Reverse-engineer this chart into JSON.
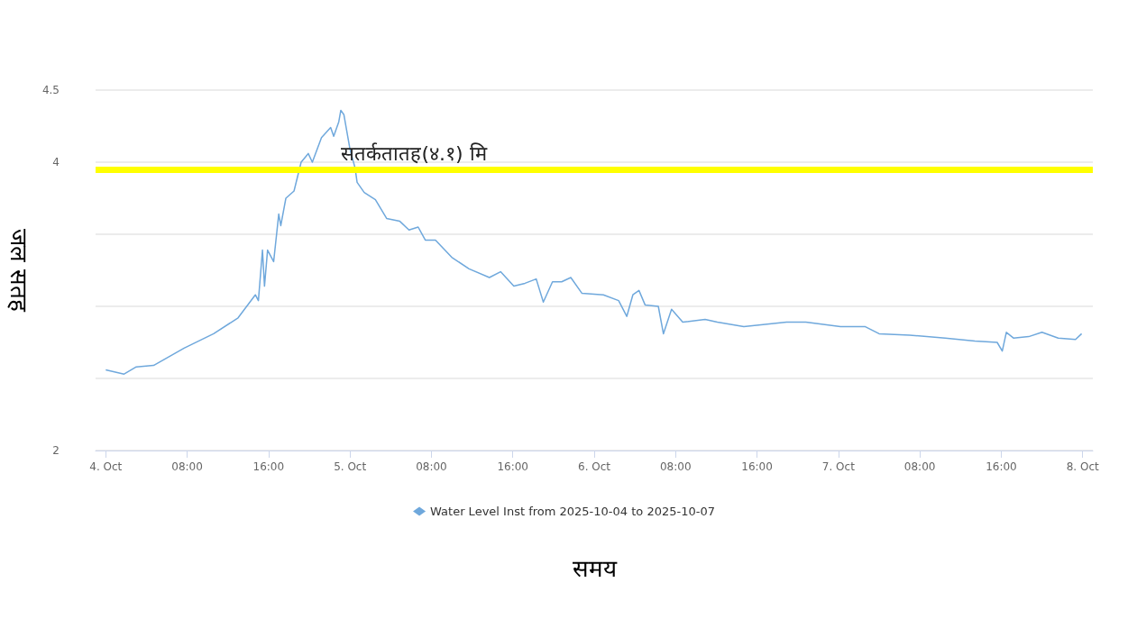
{
  "chart_data": {
    "type": "line",
    "xlabel": "समय",
    "ylabel": "जल सतह",
    "x": [
      "2025-10-04T00:00",
      "2025-10-04T01:48",
      "2025-10-04T03:00",
      "2025-10-04T04:42",
      "2025-10-04T07:42",
      "2025-10-04T10:36",
      "2025-10-04T13:00",
      "2025-10-04T14:42",
      "2025-10-04T15:00",
      "2025-10-04T15:24",
      "2025-10-04T15:36",
      "2025-10-04T15:54",
      "2025-10-04T16:30",
      "2025-10-04T17:00",
      "2025-10-04T17:12",
      "2025-10-04T17:42",
      "2025-10-04T18:30",
      "2025-10-04T19:12",
      "2025-10-04T19:54",
      "2025-10-04T20:18",
      "2025-10-04T21:12",
      "2025-10-04T22:06",
      "2025-10-04T22:24",
      "2025-10-04T22:54",
      "2025-10-04T23:06",
      "2025-10-04T23:24",
      "2025-10-05T00:00",
      "2025-10-05T00:30",
      "2025-10-05T00:42",
      "2025-10-05T01:24",
      "2025-10-05T02:30",
      "2025-10-05T03:36",
      "2025-10-05T04:54",
      "2025-10-05T05:48",
      "2025-10-05T06:42",
      "2025-10-05T07:24",
      "2025-10-05T08:24",
      "2025-10-05T10:00",
      "2025-10-05T11:42",
      "2025-10-05T13:42",
      "2025-10-05T14:48",
      "2025-10-05T16:06",
      "2025-10-05T17:12",
      "2025-10-05T18:18",
      "2025-10-05T19:00",
      "2025-10-05T19:54",
      "2025-10-05T20:48",
      "2025-10-05T21:42",
      "2025-10-05T22:48",
      "2025-10-06T00:54",
      "2025-10-06T02:24",
      "2025-10-06T03:12",
      "2025-10-06T03:48",
      "2025-10-06T04:24",
      "2025-10-06T05:00",
      "2025-10-06T06:18",
      "2025-10-06T06:48",
      "2025-10-06T07:36",
      "2025-10-06T08:42",
      "2025-10-06T10:54",
      "2025-10-06T12:06",
      "2025-10-06T14:42",
      "2025-10-06T18:54",
      "2025-10-06T20:48",
      "2025-10-07T00:12",
      "2025-10-07T02:36",
      "2025-10-07T04:00",
      "2025-10-07T07:00",
      "2025-10-07T10:30",
      "2025-10-07T13:24",
      "2025-10-07T15:36",
      "2025-10-07T16:06",
      "2025-10-07T16:30",
      "2025-10-07T17:12",
      "2025-10-07T18:42",
      "2025-10-07T20:00",
      "2025-10-07T21:36",
      "2025-10-07T23:18",
      "2025-10-07T23:54"
    ],
    "series": [
      {
        "name": "Water Level Inst from 2025-10-04 to 2025-10-07",
        "color": "#6fa8dc",
        "values": [
          2.56,
          2.53,
          2.58,
          2.59,
          2.71,
          2.81,
          2.92,
          3.08,
          3.04,
          3.39,
          3.14,
          3.39,
          3.31,
          3.64,
          3.56,
          3.75,
          3.8,
          4.0,
          4.06,
          4.0,
          4.17,
          4.24,
          4.18,
          4.28,
          4.36,
          4.33,
          4.09,
          3.96,
          3.86,
          3.79,
          3.74,
          3.61,
          3.59,
          3.53,
          3.55,
          3.46,
          3.46,
          3.34,
          3.26,
          3.2,
          3.24,
          3.14,
          3.16,
          3.19,
          3.03,
          3.17,
          3.17,
          3.2,
          3.09,
          3.08,
          3.04,
          2.93,
          3.08,
          3.11,
          3.01,
          3.0,
          2.81,
          2.98,
          2.89,
          2.91,
          2.89,
          2.86,
          2.89,
          2.89,
          2.86,
          2.86,
          2.81,
          2.8,
          2.78,
          2.76,
          2.75,
          2.69,
          2.82,
          2.78,
          2.79,
          2.82,
          2.78,
          2.77,
          2.81
        ]
      }
    ],
    "xlim": [
      "2025-10-03T23:00",
      "2025-10-08T01:00"
    ],
    "xticks": [
      {
        "value": "2025-10-04T00:00",
        "label": "4. Oct"
      },
      {
        "value": "2025-10-04T08:00",
        "label": "08:00"
      },
      {
        "value": "2025-10-04T16:00",
        "label": "16:00"
      },
      {
        "value": "2025-10-05T00:00",
        "label": "5. Oct"
      },
      {
        "value": "2025-10-05T08:00",
        "label": "08:00"
      },
      {
        "value": "2025-10-05T16:00",
        "label": "16:00"
      },
      {
        "value": "2025-10-06T00:00",
        "label": "6. Oct"
      },
      {
        "value": "2025-10-06T08:00",
        "label": "08:00"
      },
      {
        "value": "2025-10-06T16:00",
        "label": "16:00"
      },
      {
        "value": "2025-10-07T00:00",
        "label": "7. Oct"
      },
      {
        "value": "2025-10-07T08:00",
        "label": "08:00"
      },
      {
        "value": "2025-10-07T16:00",
        "label": "16:00"
      },
      {
        "value": "2025-10-08T00:00",
        "label": "8. Oct"
      }
    ],
    "ylim": [
      2,
      4.5
    ],
    "yticks": [
      2,
      {
        "value": 2.5,
        "label": null
      },
      {
        "value": 3,
        "label": null
      },
      {
        "value": 3.5,
        "label": null
      },
      4,
      4.5
    ],
    "ref_lines": [
      {
        "axis": "y",
        "value": 3.95,
        "label": "सतर्कतातह(४.१) मि",
        "color": "#ffff00"
      }
    ],
    "grid": "y",
    "legend": "bottom"
  }
}
